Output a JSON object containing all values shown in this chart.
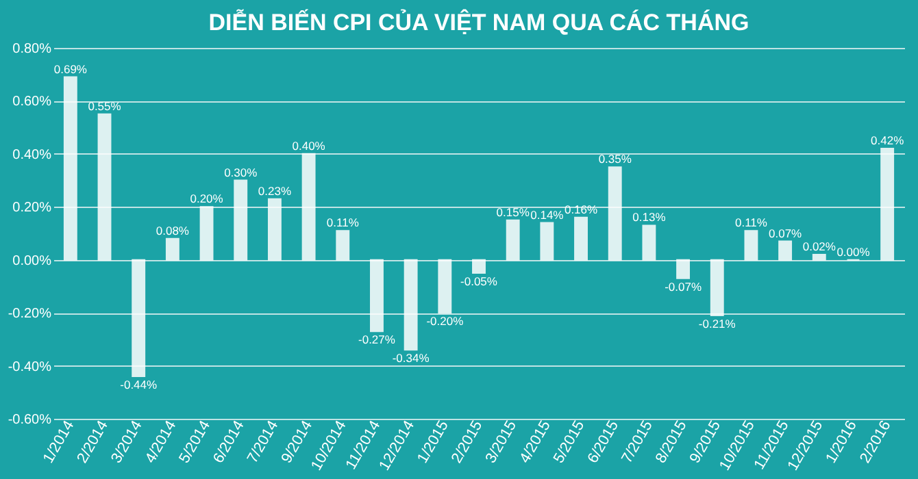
{
  "chart_data": {
    "type": "bar",
    "title": "DIỄN BIẾN CPI CỦA VIỆT NAM QUA CÁC THÁNG",
    "categories": [
      "1/2014",
      "2/2014",
      "3/2014",
      "4/2014",
      "5/2014",
      "6/2014",
      "7/2014",
      "9/2014",
      "10/2014",
      "11/2014",
      "12/2014",
      "1/2015",
      "2/2015",
      "3/2015",
      "4/2015",
      "5/2015",
      "6/2015",
      "7/2015",
      "8/2015",
      "9/2015",
      "10/2015",
      "11/2015",
      "12/2015",
      "1/2016",
      "2/2016"
    ],
    "values": [
      0.69,
      0.55,
      -0.44,
      0.08,
      0.2,
      0.3,
      0.23,
      0.4,
      0.11,
      -0.27,
      -0.34,
      -0.2,
      -0.05,
      0.15,
      0.14,
      0.16,
      0.35,
      0.13,
      -0.07,
      -0.21,
      0.11,
      0.07,
      0.02,
      0.0,
      0.42
    ],
    "value_labels": [
      "0.69%",
      "0.55%",
      "-0.44%",
      "0.08%",
      "0.20%",
      "0.30%",
      "0.23%",
      "0.40%",
      "0.11%",
      "-0.27%",
      "-0.34%",
      "-0.20%",
      "-0.05%",
      "0.15%",
      "0.14%",
      "0.16%",
      "0.35%",
      "0.13%",
      "-0.07%",
      "-0.21%",
      "0.11%",
      "0.07%",
      "0.02%",
      "0.00%",
      "0.42%"
    ],
    "color": "#ffffff",
    "ylim": [
      -0.6,
      0.8
    ],
    "yticks": [
      {
        "value": -0.6,
        "label": "-0.60%"
      },
      {
        "value": -0.4,
        "label": "-0.40%"
      },
      {
        "value": -0.2,
        "label": "-0.20%"
      },
      {
        "value": 0,
        "label": "0.00%"
      },
      {
        "value": 0.2,
        "label": "0.20%"
      },
      {
        "value": 0.4,
        "label": "0.40%"
      },
      {
        "value": 0.6,
        "label": "0.60%"
      },
      {
        "value": 0.8,
        "label": "0.80%"
      }
    ],
    "grid": "y",
    "legend": false
  }
}
